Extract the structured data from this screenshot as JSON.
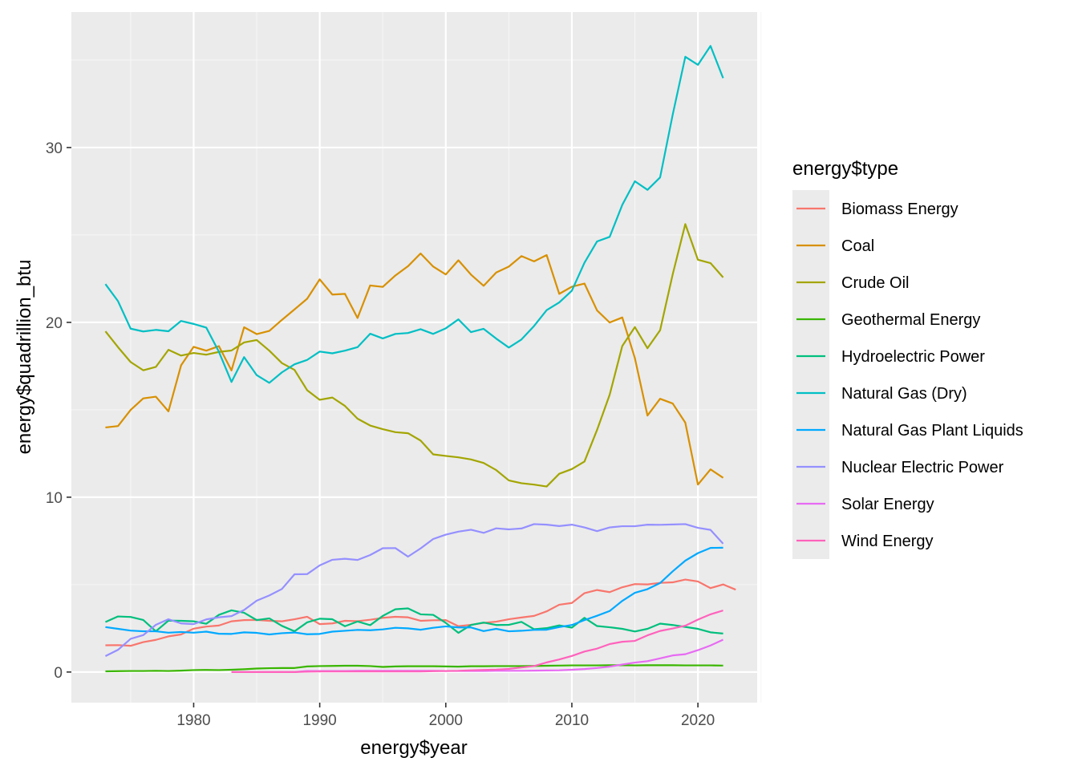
{
  "chart_data": {
    "type": "line",
    "xlabel": "energy$year",
    "ylabel": "energy$quadrillion_btu",
    "xlim": [
      1970.3,
      2024.7
    ],
    "ylim": [
      -1.75,
      37.75
    ],
    "x_ticks": [
      1980,
      1990,
      2000,
      2010,
      2020
    ],
    "y_ticks": [
      0,
      10,
      20,
      30
    ],
    "grid": true,
    "legend_title": "energy$type",
    "legend_position": "right",
    "series": [
      {
        "name": "Biomass Energy",
        "color": "#F8766D",
        "x_start": 1973,
        "values": [
          1.53,
          1.54,
          1.5,
          1.71,
          1.84,
          2.04,
          2.15,
          2.48,
          2.6,
          2.66,
          2.9,
          2.97,
          2.98,
          2.93,
          2.9,
          3.02,
          3.16,
          2.74,
          2.78,
          2.93,
          2.91,
          2.99,
          3.1,
          3.16,
          3.13,
          2.93,
          2.96,
          2.97,
          2.62,
          2.7,
          2.81,
          2.88,
          3.02,
          3.12,
          3.21,
          3.47,
          3.85,
          3.95,
          4.51,
          4.69,
          4.57,
          4.85,
          5.03,
          5.01,
          5.1,
          5.13,
          5.29,
          5.18,
          4.8,
          5.01,
          4.71
        ]
      },
      {
        "name": "Coal",
        "color": "#D89000",
        "x_start": 1973,
        "values": [
          13.99,
          14.07,
          14.99,
          15.65,
          15.75,
          14.91,
          17.54,
          18.6,
          18.38,
          18.64,
          17.25,
          19.72,
          19.33,
          19.51,
          20.14,
          20.74,
          21.35,
          22.46,
          21.59,
          21.63,
          20.25,
          22.11,
          22.03,
          22.68,
          23.21,
          23.94,
          23.19,
          22.74,
          23.55,
          22.73,
          22.09,
          22.85,
          23.19,
          23.79,
          23.49,
          23.85,
          21.63,
          22.04,
          22.22,
          20.68,
          19.99,
          20.28,
          17.95,
          14.67,
          15.63,
          15.36,
          14.26,
          10.72,
          11.59,
          11.11
        ]
      },
      {
        "name": "Crude Oil",
        "color": "#A3A500",
        "x_start": 1973,
        "values": [
          19.49,
          18.58,
          17.73,
          17.26,
          17.45,
          18.43,
          18.1,
          18.25,
          18.15,
          18.31,
          18.39,
          18.85,
          18.99,
          18.38,
          17.67,
          17.28,
          16.12,
          15.57,
          15.7,
          15.22,
          14.49,
          14.1,
          13.89,
          13.72,
          13.66,
          13.24,
          12.45,
          12.36,
          12.28,
          12.16,
          11.96,
          11.55,
          10.96,
          10.8,
          10.72,
          10.61,
          11.34,
          11.61,
          12.04,
          13.85,
          15.86,
          18.65,
          19.73,
          18.52,
          19.55,
          22.75,
          25.62,
          23.58,
          23.39,
          22.57
        ]
      },
      {
        "name": "Geothermal Energy",
        "color": "#39B600",
        "x_start": 1973,
        "values": [
          0.04,
          0.05,
          0.06,
          0.06,
          0.07,
          0.06,
          0.08,
          0.11,
          0.12,
          0.11,
          0.13,
          0.16,
          0.2,
          0.22,
          0.23,
          0.23,
          0.32,
          0.34,
          0.35,
          0.36,
          0.36,
          0.34,
          0.29,
          0.32,
          0.33,
          0.33,
          0.33,
          0.32,
          0.31,
          0.33,
          0.33,
          0.34,
          0.34,
          0.34,
          0.35,
          0.36,
          0.37,
          0.38,
          0.38,
          0.38,
          0.39,
          0.39,
          0.38,
          0.39,
          0.39,
          0.39,
          0.38,
          0.38,
          0.38,
          0.37
        ]
      },
      {
        "name": "Hydroelectric Power",
        "color": "#00BF7D",
        "x_start": 1973,
        "values": [
          2.86,
          3.18,
          3.15,
          2.98,
          2.33,
          2.94,
          2.93,
          2.9,
          2.76,
          3.27,
          3.53,
          3.39,
          2.97,
          3.07,
          2.64,
          2.33,
          2.84,
          3.05,
          3.02,
          2.62,
          2.89,
          2.68,
          3.21,
          3.59,
          3.64,
          3.3,
          3.27,
          2.81,
          2.24,
          2.69,
          2.83,
          2.69,
          2.7,
          2.87,
          2.45,
          2.51,
          2.67,
          2.54,
          3.1,
          2.63,
          2.56,
          2.47,
          2.32,
          2.47,
          2.77,
          2.69,
          2.58,
          2.47,
          2.27,
          2.2
        ]
      },
      {
        "name": "Natural Gas (Dry)",
        "color": "#00BFC4",
        "x_start": 1973,
        "values": [
          22.19,
          21.21,
          19.64,
          19.48,
          19.57,
          19.49,
          20.08,
          19.91,
          19.7,
          18.32,
          16.59,
          18.01,
          16.98,
          16.54,
          17.14,
          17.6,
          17.85,
          18.33,
          18.23,
          18.38,
          18.58,
          19.35,
          19.08,
          19.34,
          19.39,
          19.61,
          19.34,
          19.66,
          20.17,
          19.44,
          19.63,
          19.07,
          18.56,
          19.02,
          19.79,
          20.7,
          21.14,
          21.81,
          23.41,
          24.63,
          24.89,
          26.72,
          28.07,
          27.58,
          28.29,
          31.88,
          35.19,
          34.73,
          35.81,
          33.97
        ]
      },
      {
        "name": "Natural Gas Plant Liquids",
        "color": "#00A9FF",
        "x_start": 1973,
        "values": [
          2.57,
          2.47,
          2.37,
          2.33,
          2.33,
          2.25,
          2.29,
          2.25,
          2.31,
          2.19,
          2.18,
          2.27,
          2.24,
          2.15,
          2.22,
          2.26,
          2.16,
          2.18,
          2.31,
          2.36,
          2.41,
          2.39,
          2.44,
          2.53,
          2.5,
          2.42,
          2.53,
          2.61,
          2.55,
          2.55,
          2.34,
          2.47,
          2.33,
          2.36,
          2.41,
          2.42,
          2.57,
          2.69,
          2.97,
          3.22,
          3.49,
          4.07,
          4.53,
          4.74,
          5.09,
          5.76,
          6.37,
          6.8,
          7.1,
          7.11
        ]
      },
      {
        "name": "Nuclear Electric Power",
        "color": "#9590FF",
        "x_start": 1973,
        "values": [
          0.91,
          1.27,
          1.9,
          2.11,
          2.7,
          3.02,
          2.78,
          2.74,
          3.01,
          3.13,
          3.2,
          3.55,
          4.08,
          4.38,
          4.75,
          5.59,
          5.6,
          6.1,
          6.42,
          6.48,
          6.41,
          6.69,
          7.08,
          7.09,
          6.6,
          7.07,
          7.61,
          7.86,
          8.03,
          8.14,
          7.96,
          8.22,
          8.16,
          8.21,
          8.46,
          8.43,
          8.35,
          8.43,
          8.27,
          8.06,
          8.27,
          8.34,
          8.34,
          8.43,
          8.42,
          8.44,
          8.46,
          8.25,
          8.13,
          7.34
        ]
      },
      {
        "name": "Solar Energy",
        "color": "#E76BF3",
        "x_start": 1983,
        "values": [
          0.0,
          0.0,
          0.0,
          0.0,
          0.0,
          0.0,
          0.06,
          0.06,
          0.06,
          0.06,
          0.07,
          0.07,
          0.07,
          0.07,
          0.07,
          0.07,
          0.07,
          0.06,
          0.06,
          0.06,
          0.06,
          0.07,
          0.07,
          0.07,
          0.08,
          0.09,
          0.1,
          0.13,
          0.17,
          0.23,
          0.31,
          0.43,
          0.54,
          0.62,
          0.78,
          0.95,
          1.02,
          1.25,
          1.52,
          1.85
        ]
      },
      {
        "name": "Wind Energy",
        "color": "#FF62BC",
        "x_start": 1983,
        "values": [
          0.0,
          0.0,
          0.0,
          0.0,
          0.0,
          0.0,
          0.02,
          0.03,
          0.03,
          0.03,
          0.03,
          0.04,
          0.03,
          0.03,
          0.03,
          0.03,
          0.05,
          0.06,
          0.07,
          0.1,
          0.12,
          0.14,
          0.18,
          0.26,
          0.34,
          0.55,
          0.72,
          0.92,
          1.17,
          1.34,
          1.6,
          1.73,
          1.78,
          2.1,
          2.35,
          2.49,
          2.65,
          3.0,
          3.3,
          3.52
        ]
      }
    ]
  }
}
